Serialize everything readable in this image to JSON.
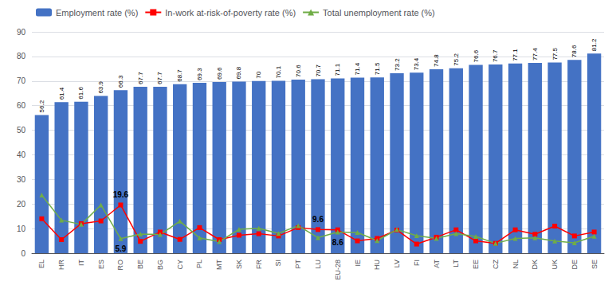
{
  "chart_data": {
    "type": "bar",
    "categories": [
      "EL",
      "HR",
      "IT",
      "ES",
      "RO",
      "BE",
      "BG",
      "CY",
      "PL",
      "MT",
      "SK",
      "FR",
      "SI",
      "PT",
      "LU",
      "EU-28",
      "IE",
      "HU",
      "LV",
      "FI",
      "AT",
      "LT",
      "EE",
      "CZ",
      "NL",
      "DK",
      "UK",
      "DE",
      "SE"
    ],
    "series": [
      {
        "name": "Employment rate (%)",
        "type": "bar",
        "color": "#4472C4",
        "data_labels": true,
        "values": [
          56.2,
          61.4,
          61.6,
          63.9,
          66.3,
          67.7,
          67.7,
          68.7,
          69.3,
          69.6,
          69.8,
          70.0,
          70.1,
          70.6,
          70.7,
          71.1,
          71.4,
          71.5,
          73.2,
          73.4,
          74.8,
          75.2,
          76.6,
          76.7,
          77.1,
          77.4,
          77.5,
          78.6,
          81.2
        ]
      },
      {
        "name": "In-work at-risk-of-poverty rate (%)",
        "type": "line",
        "color": "#FF0000",
        "marker": "square",
        "values": [
          14.0,
          5.5,
          12.0,
          13.1,
          19.6,
          4.8,
          8.6,
          5.6,
          10.4,
          5.5,
          7.3,
          7.9,
          7.0,
          10.4,
          9.6,
          9.5,
          5.0,
          6.0,
          9.4,
          3.7,
          6.5,
          9.5,
          5.0,
          4.0,
          9.5,
          7.7,
          11.0,
          7.0,
          8.6
        ]
      },
      {
        "name": "Total unemployment rate (%)",
        "type": "line",
        "color": "#70AD47",
        "marker": "triangle",
        "values": [
          23.6,
          13.4,
          11.7,
          19.6,
          5.9,
          7.8,
          7.6,
          13.0,
          6.2,
          4.7,
          9.7,
          10.1,
          8.0,
          11.2,
          6.3,
          8.6,
          8.4,
          5.1,
          9.6,
          7.1,
          6.0,
          7.9,
          6.8,
          4.0,
          6.0,
          6.2,
          4.9,
          4.2,
          6.9
        ]
      }
    ],
    "annotations": [
      {
        "text": "19.6",
        "category": "RO",
        "series": "In-work at-risk-of-poverty rate (%)"
      },
      {
        "text": "9.6",
        "category": "LU",
        "series": "In-work at-risk-of-poverty rate (%)"
      },
      {
        "text": "5.9",
        "category": "RO",
        "series": "Total unemployment rate (%)"
      },
      {
        "text": "8.6",
        "category": "EU-28",
        "series": "Total unemployment rate (%)"
      }
    ],
    "ylim": [
      0,
      90
    ],
    "yticks": [
      0,
      10,
      20,
      30,
      40,
      50,
      60,
      70,
      80,
      90
    ],
    "grid": true,
    "legend": "upper left"
  }
}
